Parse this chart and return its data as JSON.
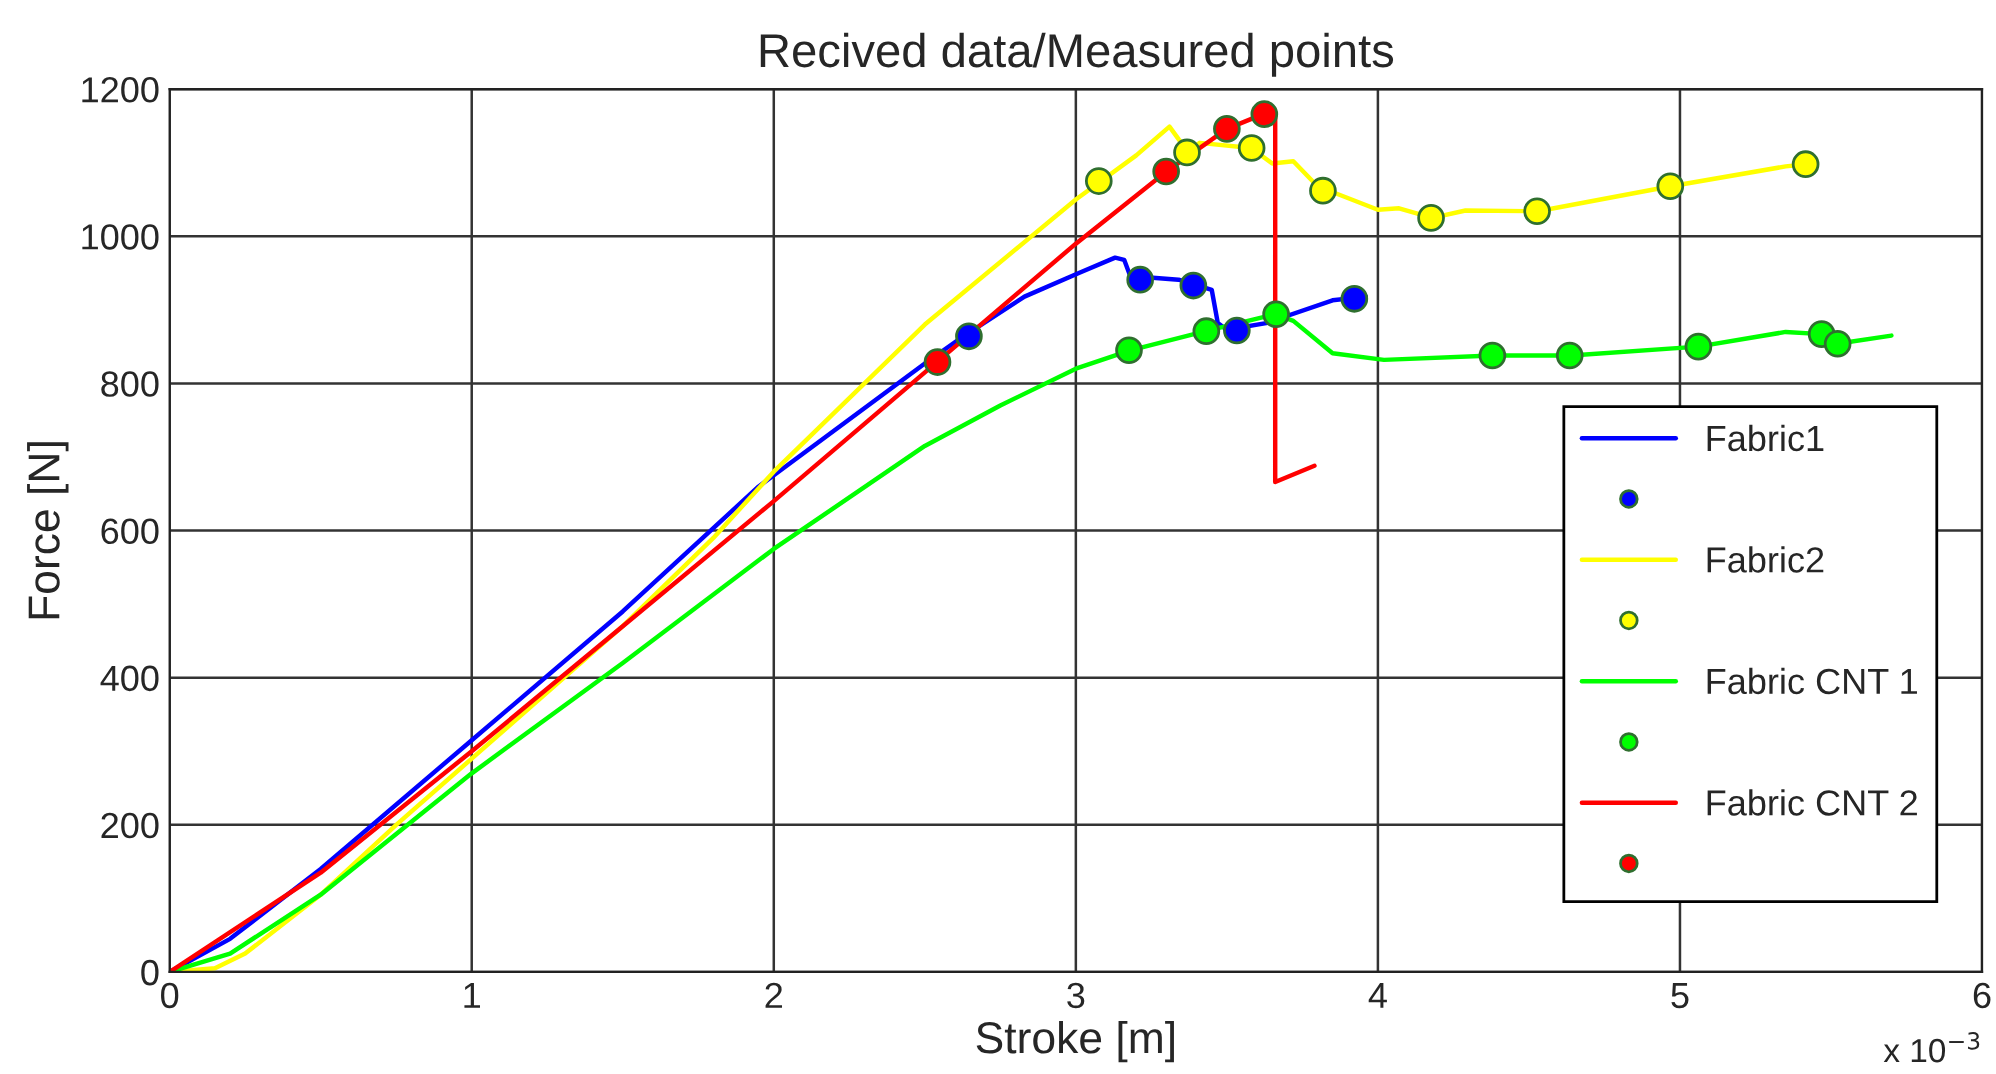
{
  "chart_data": {
    "type": "line",
    "title": "Recived data/Measured points",
    "xlabel": "Stroke [m]",
    "ylabel": "Force [N]",
    "annotations": [
      "x 10$^{−3}$"
    ],
    "xlim": [
      0,
      6
    ],
    "xticks": [
      0,
      1,
      2,
      3,
      4,
      5,
      6
    ],
    "ylim": [
      0,
      1200
    ],
    "yticks": [
      0,
      200,
      400,
      600,
      800,
      1000,
      1200
    ],
    "grid": true,
    "legend": "right",
    "series": [
      {
        "name": "Fabric1",
        "color": "#0000ff",
        "x": [
          0,
          0.2,
          0.5,
          1,
          1.5,
          1.95,
          2.5,
          2.61,
          2.83,
          3.01,
          3.13,
          3.16,
          3.18,
          3.34,
          3.45,
          3.47,
          3.5,
          3.63,
          3.85,
          3.96
        ],
        "values": [
          0,
          45,
          140,
          315,
          490,
          660,
          827,
          859,
          918,
          950,
          971,
          968,
          946,
          941,
          927,
          882,
          873,
          882,
          913,
          918
        ]
      },
      {
        "type": "scatter",
        "color": "#0000ff",
        "marker": "circle",
        "x": [
          2.646,
          3.213,
          3.389,
          3.533,
          3.922
        ],
        "values": [
          864,
          941,
          933,
          872,
          915
        ]
      },
      {
        "name": "Fabric2",
        "color": "#ffff00",
        "x": [
          0,
          0.15,
          0.25,
          0.5,
          0.75,
          1,
          1.5,
          1.8,
          2,
          2.5,
          3,
          3.2,
          3.31,
          3.37,
          3.41,
          3.58,
          3.65,
          3.72,
          3.8,
          4,
          4.07,
          4.18,
          4.29,
          4.53,
          4.97,
          5.35,
          5.42
        ],
        "values": [
          0,
          5,
          25,
          105,
          200,
          290,
          470,
          590,
          680,
          880,
          1050,
          1110,
          1149,
          1115,
          1127,
          1120,
          1099,
          1102,
          1068,
          1036,
          1038,
          1025,
          1035,
          1034,
          1068,
          1095,
          1098
        ]
      },
      {
        "type": "scatter",
        "color": "#ffff00",
        "marker": "circle",
        "x": [
          3.076,
          3.368,
          3.582,
          3.818,
          4.176,
          4.527,
          4.968,
          5.416
        ],
        "values": [
          1075,
          1114,
          1120,
          1062,
          1025,
          1034,
          1068,
          1098
        ]
      },
      {
        "name": "Fabric CNT 1",
        "color": "#00ff00",
        "x": [
          0,
          0.2,
          0.5,
          1,
          1.5,
          2,
          2.5,
          2.75,
          3,
          3.18,
          3.43,
          3.66,
          3.72,
          3.85,
          4.02,
          4.38,
          4.64,
          5.06,
          5.35,
          5.47,
          5.52,
          5.7
        ],
        "values": [
          0,
          25,
          105,
          270,
          420,
          575,
          715,
          770,
          820,
          845,
          871,
          894,
          885,
          841,
          832,
          838,
          838,
          850,
          870,
          867,
          854,
          865
        ]
      },
      {
        "type": "scatter",
        "color": "#00ff00",
        "marker": "circle",
        "x": [
          3.176,
          3.432,
          3.663,
          4.379,
          4.635,
          5.061,
          5.469,
          5.522
        ],
        "values": [
          845,
          871,
          894,
          838,
          838,
          850,
          867,
          854
        ]
      },
      {
        "name": "Fabric CNT 2",
        "color": "#ff0000",
        "x": [
          0,
          0.5,
          1,
          1.5,
          2,
          2.54,
          3,
          3.3,
          3.5,
          3.62,
          3.646,
          3.66,
          3.66,
          3.79
        ],
        "values": [
          0,
          135,
          300,
          470,
          640,
          829,
          990,
          1088,
          1146,
          1166,
          1172,
          1160,
          666,
          688
        ]
      },
      {
        "type": "scatter",
        "color": "#ff0000",
        "marker": "circle",
        "x": [
          2.542,
          3.299,
          3.5,
          3.624
        ],
        "values": [
          829,
          1088,
          1146,
          1166
        ]
      }
    ]
  }
}
